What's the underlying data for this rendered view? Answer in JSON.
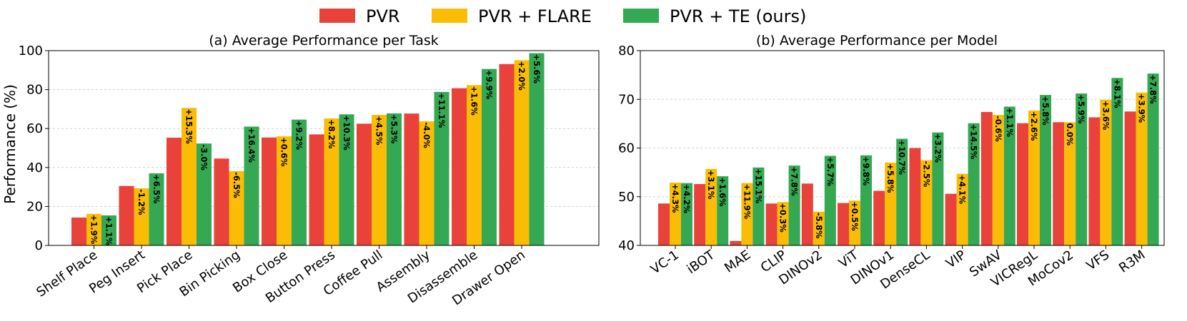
{
  "colors": {
    "pvr": "#e8423b",
    "flare": "#fbbc05",
    "te": "#35a853"
  },
  "legend": [
    {
      "key": "pvr",
      "label": "PVR"
    },
    {
      "key": "flare",
      "label": "PVR + FLARE"
    },
    {
      "key": "te",
      "label": "PVR + TE (ours)"
    }
  ],
  "chart_data": [
    {
      "type": "bar",
      "title": "(a) Average Performance per Task",
      "ylabel": "Performance (%)",
      "ylim": [
        0,
        100
      ],
      "yticks": [
        0,
        20,
        40,
        60,
        80,
        100
      ],
      "grid": true,
      "categories": [
        "Shelf Place",
        "Peg Insert",
        "Pick Place",
        "Bin Picking",
        "Box Close",
        "Button Press",
        "Coffee Pull",
        "Assembly",
        "Disassemble",
        "Drawer Open"
      ],
      "series": [
        {
          "name": "PVR",
          "key": "pvr",
          "values": [
            14.3,
            30.5,
            55.3,
            44.6,
            55.4,
            57.0,
            62.5,
            67.7,
            80.7,
            93.1
          ]
        },
        {
          "name": "PVR + FLARE",
          "key": "flare",
          "values": [
            16.2,
            29.3,
            70.6,
            38.1,
            56.0,
            65.2,
            67.0,
            63.7,
            82.3,
            95.1
          ]
        },
        {
          "name": "PVR + TE (ours)",
          "key": "te",
          "values": [
            15.4,
            37.0,
            52.3,
            61.0,
            64.6,
            67.3,
            67.8,
            78.8,
            90.6,
            98.7
          ]
        }
      ],
      "annotations": {
        "flare": [
          "+1.9%",
          "-1.2%",
          "+15.3%",
          "-6.5%",
          "+0.6%",
          "+8.2%",
          "+4.5%",
          "-4.0%",
          "+1.6%",
          "+2.0%"
        ],
        "te": [
          "+1.1%",
          "+6.5%",
          "-3.0%",
          "+16.4%",
          "+9.2%",
          "+10.3%",
          "+5.3%",
          "+11.1%",
          "+9.9%",
          "+5.6%"
        ]
      }
    },
    {
      "type": "bar",
      "title": "(b) Average Performance per Model",
      "ylabel": "",
      "ylim": [
        40,
        80
      ],
      "yticks": [
        40,
        50,
        60,
        70,
        80
      ],
      "grid": true,
      "categories": [
        "VC-1",
        "iBOT",
        "MAE",
        "CLIP",
        "DINOv2",
        "ViT",
        "DINOv1",
        "DenseCL",
        "VIP",
        "SwAV",
        "VICRegL",
        "MoCov2",
        "VFS",
        "R3M"
      ],
      "series": [
        {
          "name": "PVR",
          "key": "pvr",
          "values": [
            48.6,
            52.6,
            40.9,
            48.6,
            52.7,
            48.7,
            51.2,
            60.0,
            50.6,
            67.4,
            65.1,
            65.3,
            66.3,
            67.5
          ]
        },
        {
          "name": "PVR + FLARE",
          "key": "flare",
          "values": [
            52.9,
            55.7,
            52.8,
            48.9,
            46.9,
            49.2,
            57.0,
            57.5,
            54.7,
            66.8,
            67.7,
            65.3,
            69.9,
            71.4
          ]
        },
        {
          "name": "PVR + TE (ours)",
          "key": "te",
          "values": [
            52.8,
            54.2,
            56.0,
            56.4,
            58.4,
            58.5,
            61.9,
            63.2,
            65.1,
            68.5,
            70.9,
            71.2,
            74.4,
            75.3
          ]
        }
      ],
      "annotations": {
        "flare": [
          "+4.3%",
          "+3.1%",
          "+11.9%",
          "+0.3%",
          "-5.8%",
          "+0.5%",
          "+5.8%",
          "-2.5%",
          "+4.1%",
          "-0.6%",
          "+2.6%",
          "0.0%",
          "+3.6%",
          "+3.9%"
        ],
        "te": [
          "+4.2%",
          "+1.6%",
          "+15.1%",
          "+7.8%",
          "+5.7%",
          "+9.8%",
          "+10.7%",
          "+3.2%",
          "+14.5%",
          "+1.1%",
          "+5.8%",
          "+5.9%",
          "+8.1%",
          "+7.8%"
        ]
      }
    }
  ]
}
